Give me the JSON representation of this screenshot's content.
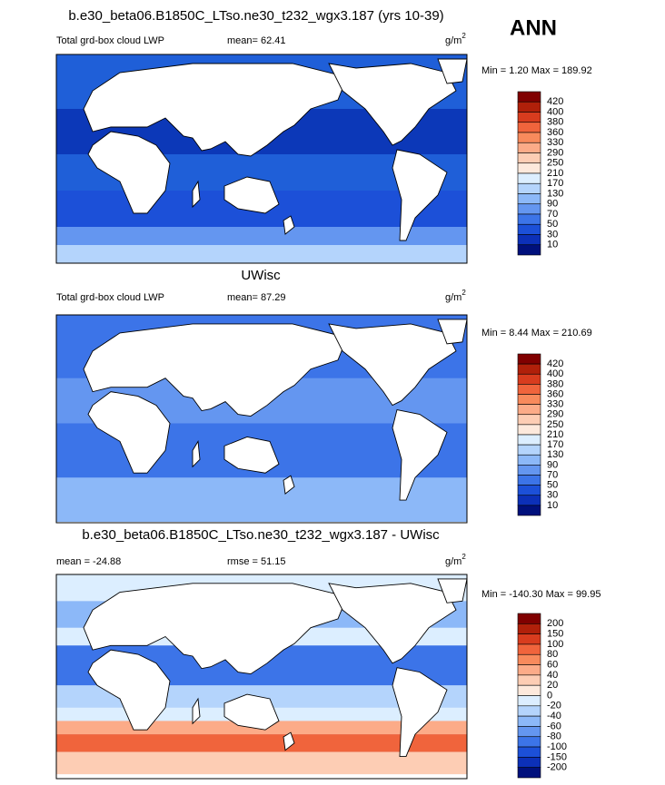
{
  "title": "b.e30_beta06.B1850C_LTso.ne30_t232_wgx3.187 (yrs 10-39)",
  "season": "ANN",
  "panels": [
    {
      "left_label": "Total grd-box cloud LWP",
      "center_label": "mean=  62.41",
      "units": "g/m",
      "units_sup": "2",
      "min_max": "Min =   1.20 Max = 189.92",
      "colorbar": {
        "levels": [
          420,
          400,
          380,
          360,
          330,
          290,
          250,
          210,
          170,
          130,
          90,
          70,
          50,
          30,
          10
        ],
        "colors": [
          "#800000",
          "#b0200a",
          "#d83c1e",
          "#f0643c",
          "#f88a5c",
          "#fcab88",
          "#fdcdb4",
          "#fde9dc",
          "#dceeff",
          "#b4d4fc",
          "#8cb8f8",
          "#6496f0",
          "#3c74e8",
          "#1c50d8",
          "#0c30b8",
          "#00107c"
        ]
      }
    },
    {
      "title": "UWisc",
      "left_label": "Total grd-box cloud LWP",
      "center_label": "mean=  87.29",
      "units": "g/m",
      "units_sup": "2",
      "min_max": "Min =   8.44 Max = 210.69",
      "colorbar": {
        "levels": [
          420,
          400,
          380,
          360,
          330,
          290,
          250,
          210,
          170,
          130,
          90,
          70,
          50,
          30,
          10
        ],
        "colors": [
          "#800000",
          "#b0200a",
          "#d83c1e",
          "#f0643c",
          "#f88a5c",
          "#fcab88",
          "#fdcdb4",
          "#fde9dc",
          "#dceeff",
          "#b4d4fc",
          "#8cb8f8",
          "#6496f0",
          "#3c74e8",
          "#1c50d8",
          "#0c30b8",
          "#00107c"
        ]
      }
    },
    {
      "title": "b.e30_beta06.B1850C_LTso.ne30_t232_wgx3.187 - UWisc",
      "left_label": "mean = -24.88",
      "center_label": "rmse =  51.15",
      "units": "g/m",
      "units_sup": "2",
      "min_max": "Min = -140.30 Max =  99.95",
      "colorbar": {
        "levels": [
          200,
          150,
          100,
          80,
          60,
          40,
          20,
          0,
          -20,
          -40,
          -60,
          -80,
          -100,
          -150,
          -200
        ],
        "colors": [
          "#800000",
          "#b0200a",
          "#d83c1e",
          "#f0643c",
          "#f88a5c",
          "#fcab88",
          "#fdcdb4",
          "#fde9dc",
          "#dceeff",
          "#b4d4fc",
          "#8cb8f8",
          "#6496f0",
          "#3c74e8",
          "#1c50d8",
          "#0c30b8",
          "#00107c"
        ]
      }
    }
  ]
}
